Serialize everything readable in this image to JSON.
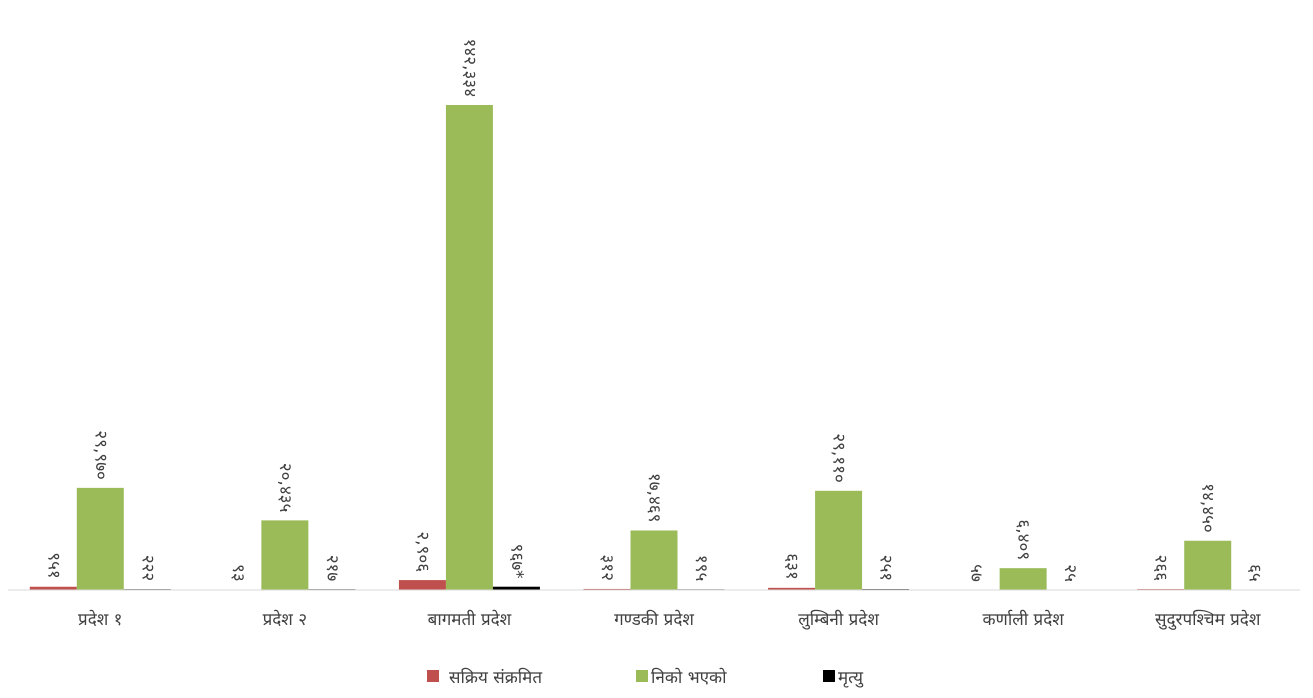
{
  "chart_data": {
    "type": "bar",
    "categories": [
      "प्रदेश १",
      "प्रदेश २",
      "बागमती प्रदेश",
      "गण्डकी प्रदेश",
      "लुम्बिनी प्रदेश",
      "कर्णाली प्रदेश",
      "सुदुरपश्चिम प्रदेश"
    ],
    "series": [
      {
        "name": "सक्रिय संक्रमित",
        "color": "#c0504d",
        "values": [
          951,
          93,
          2906,
          312,
          631,
          57,
          266
        ],
        "value_labels": [
          "९५१",
          "९३",
          "२,९०६",
          "३१२",
          "६३१",
          "५७",
          "२६६"
        ]
      },
      {
        "name": "निको भएको",
        "color": "#9bbb59",
        "values": [
          29970,
          20435,
          142334,
          17469,
          29110,
          6409,
          14450
        ],
        "value_labels": [
          "२९,९७०",
          "२०,४३५",
          "१४२,३३४",
          "१७,४६९",
          "२९,११०",
          "६,४०९",
          "१४,४५०"
        ]
      },
      {
        "name": "मृत्यु",
        "color": "#000000",
        "values": [
          222,
          217,
          967,
          195,
          251,
          25,
          65
        ],
        "value_labels": [
          "२२२",
          "२१७",
          "९६७*",
          "१९५",
          "२५१",
          "२५",
          "६५"
        ]
      }
    ]
  }
}
